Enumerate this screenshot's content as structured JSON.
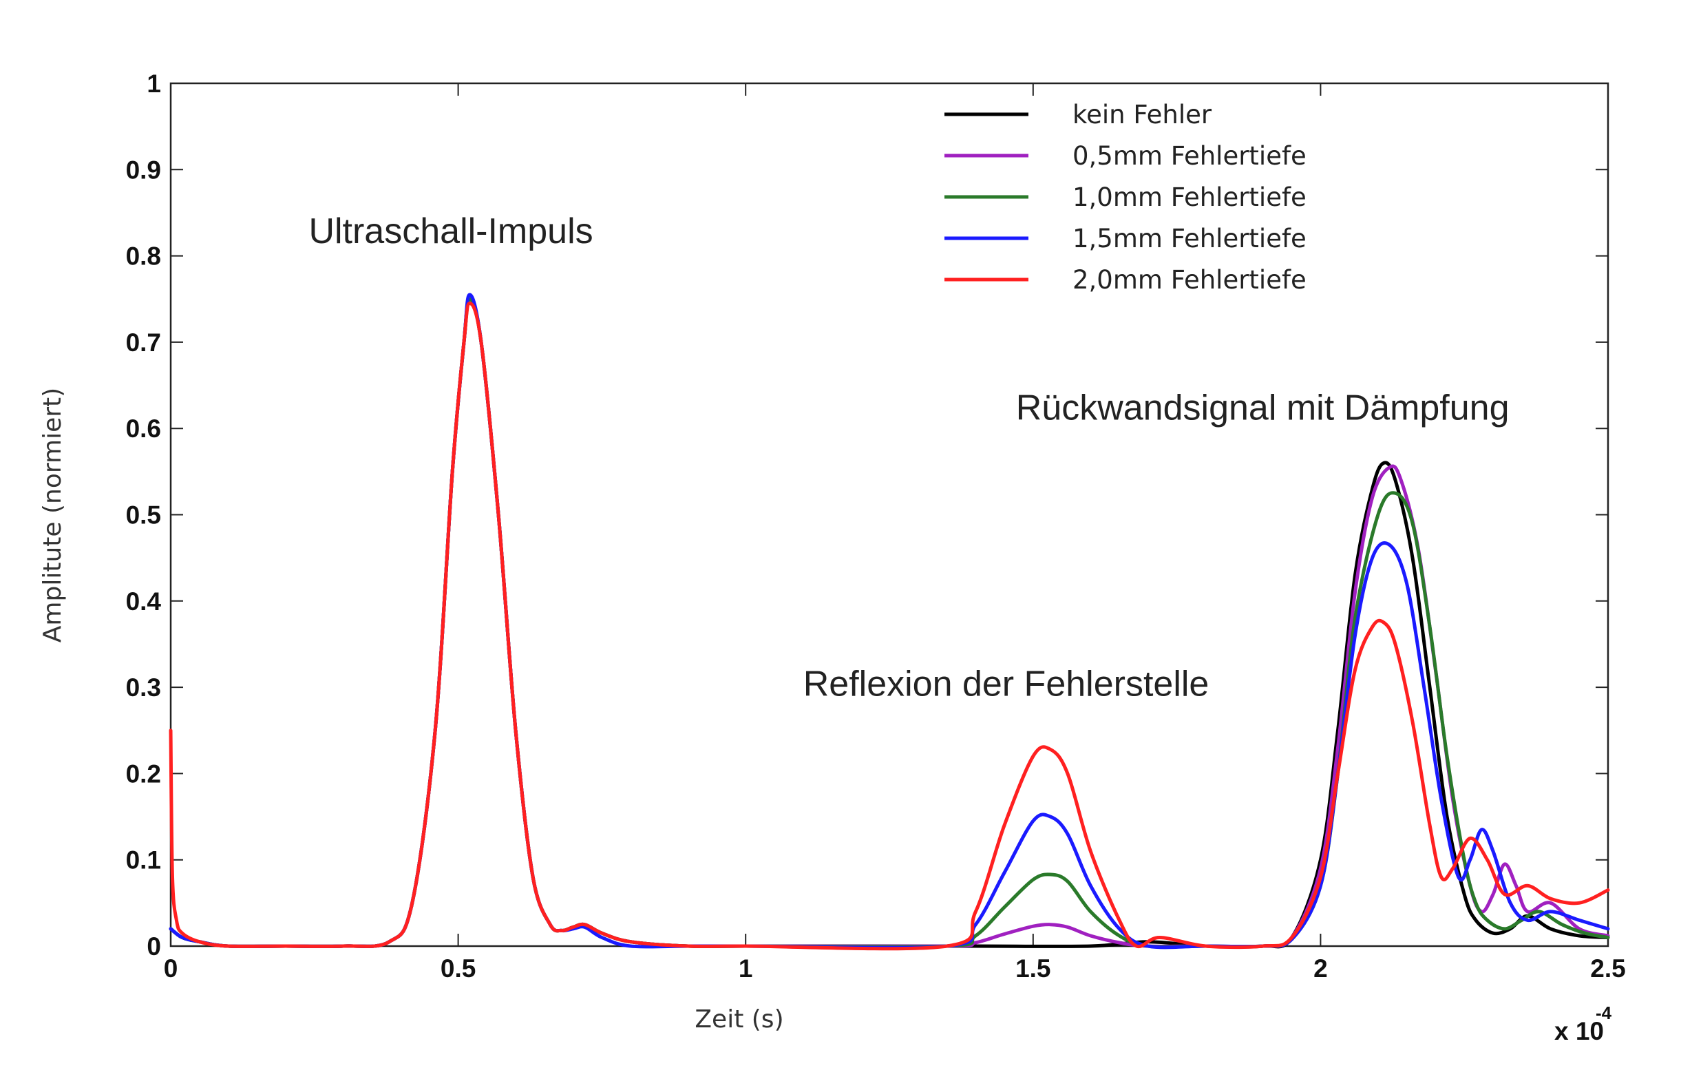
{
  "chart_data": {
    "type": "line",
    "xlabel": "Zeit (s)",
    "ylabel": "Amplitute (normiert)",
    "x_exponent_base": "x 10",
    "x_exponent_power": "-4",
    "xlim": [
      0,
      2.5
    ],
    "ylim": [
      0,
      1
    ],
    "x_ticks": [
      "0",
      "0.5",
      "1",
      "1.5",
      "2",
      "2.5"
    ],
    "y_ticks": [
      "0",
      "0.1",
      "0.2",
      "0.3",
      "0.4",
      "0.5",
      "0.6",
      "0.7",
      "0.8",
      "0.9",
      "1"
    ],
    "grid": false,
    "legend_position": "top-right",
    "annotations": [
      {
        "text": "Ultraschall-Impuls",
        "x": 0.24,
        "y": 0.815
      },
      {
        "text": "Reflexion der Fehlerstelle",
        "x": 1.1,
        "y": 0.29
      },
      {
        "text": "Rückwandsignal mit Dämpfung",
        "x": 1.47,
        "y": 0.61
      }
    ],
    "series": [
      {
        "name": "kein Fehler",
        "color": "#000000",
        "x": [
          0,
          0.02,
          0.05,
          0.1,
          0.2,
          0.3,
          0.38,
          0.42,
          0.46,
          0.49,
          0.51,
          0.52,
          0.54,
          0.57,
          0.6,
          0.63,
          0.66,
          0.68,
          0.7,
          0.72,
          0.75,
          0.8,
          0.9,
          1.0,
          1.2,
          1.4,
          1.6,
          1.7,
          1.8,
          1.9,
          1.95,
          2.0,
          2.03,
          2.06,
          2.09,
          2.11,
          2.13,
          2.16,
          2.19,
          2.22,
          2.25,
          2.27,
          2.3,
          2.33,
          2.36,
          2.4,
          2.45,
          2.5
        ],
        "y": [
          0.02,
          0.01,
          0.005,
          0.0,
          0.0,
          0.0,
          0.005,
          0.05,
          0.25,
          0.55,
          0.7,
          0.75,
          0.7,
          0.5,
          0.25,
          0.08,
          0.025,
          0.018,
          0.022,
          0.025,
          0.015,
          0.005,
          0.0,
          0.0,
          0.0,
          0.0,
          0.0,
          0.005,
          0.0,
          0.0,
          0.01,
          0.1,
          0.25,
          0.43,
          0.53,
          0.56,
          0.54,
          0.45,
          0.3,
          0.15,
          0.06,
          0.03,
          0.015,
          0.02,
          0.035,
          0.02,
          0.012,
          0.01
        ]
      },
      {
        "name": "0,5mm Fehlertiefe",
        "color": "#a020c0",
        "x": [
          0,
          0.02,
          0.05,
          0.1,
          0.2,
          0.3,
          0.38,
          0.42,
          0.46,
          0.49,
          0.51,
          0.52,
          0.54,
          0.57,
          0.6,
          0.63,
          0.66,
          0.68,
          0.7,
          0.72,
          0.75,
          0.8,
          0.9,
          1.0,
          1.35,
          1.4,
          1.45,
          1.5,
          1.53,
          1.56,
          1.6,
          1.65,
          1.7,
          1.8,
          1.9,
          1.95,
          2.0,
          2.03,
          2.06,
          2.09,
          2.12,
          2.14,
          2.17,
          2.2,
          2.23,
          2.26,
          2.28,
          2.3,
          2.32,
          2.34,
          2.36,
          2.4,
          2.45,
          2.5
        ],
        "y": [
          0.02,
          0.01,
          0.005,
          0.0,
          0.0,
          0.0,
          0.005,
          0.05,
          0.25,
          0.55,
          0.7,
          0.75,
          0.7,
          0.5,
          0.25,
          0.08,
          0.025,
          0.018,
          0.022,
          0.025,
          0.015,
          0.005,
          0.0,
          0.0,
          0.0,
          0.004,
          0.014,
          0.023,
          0.025,
          0.022,
          0.012,
          0.004,
          0.0,
          0.0,
          0.0,
          0.01,
          0.09,
          0.23,
          0.41,
          0.52,
          0.555,
          0.54,
          0.46,
          0.32,
          0.17,
          0.07,
          0.04,
          0.06,
          0.095,
          0.07,
          0.04,
          0.05,
          0.02,
          0.012
        ]
      },
      {
        "name": "1,0mm Fehlertiefe",
        "color": "#2a7a2a",
        "x": [
          0,
          0.02,
          0.05,
          0.1,
          0.2,
          0.3,
          0.38,
          0.42,
          0.46,
          0.49,
          0.51,
          0.52,
          0.54,
          0.57,
          0.6,
          0.63,
          0.66,
          0.68,
          0.7,
          0.72,
          0.75,
          0.8,
          0.9,
          1.0,
          1.35,
          1.4,
          1.45,
          1.5,
          1.53,
          1.56,
          1.6,
          1.65,
          1.7,
          1.8,
          1.9,
          1.95,
          2.0,
          2.03,
          2.06,
          2.1,
          2.13,
          2.16,
          2.19,
          2.22,
          2.25,
          2.27,
          2.29,
          2.32,
          2.35,
          2.38,
          2.42,
          2.46,
          2.5
        ],
        "y": [
          0.02,
          0.01,
          0.005,
          0.0,
          0.0,
          0.0,
          0.005,
          0.05,
          0.25,
          0.55,
          0.7,
          0.75,
          0.7,
          0.5,
          0.25,
          0.08,
          0.025,
          0.018,
          0.022,
          0.025,
          0.015,
          0.005,
          0.0,
          0.0,
          0.0,
          0.012,
          0.045,
          0.077,
          0.083,
          0.075,
          0.04,
          0.012,
          0.0,
          0.0,
          0.0,
          0.008,
          0.07,
          0.2,
          0.38,
          0.5,
          0.525,
          0.49,
          0.37,
          0.22,
          0.1,
          0.05,
          0.03,
          0.02,
          0.03,
          0.04,
          0.025,
          0.015,
          0.01
        ]
      },
      {
        "name": "1,5mm Fehlertiefe",
        "color": "#1a1aff",
        "x": [
          0,
          0.02,
          0.05,
          0.1,
          0.2,
          0.3,
          0.38,
          0.42,
          0.46,
          0.49,
          0.51,
          0.52,
          0.54,
          0.57,
          0.6,
          0.63,
          0.66,
          0.68,
          0.7,
          0.72,
          0.75,
          0.8,
          0.9,
          1.0,
          1.35,
          1.4,
          1.45,
          1.5,
          1.53,
          1.56,
          1.6,
          1.65,
          1.7,
          1.8,
          1.9,
          1.95,
          2.0,
          2.03,
          2.06,
          2.09,
          2.12,
          2.15,
          2.18,
          2.21,
          2.24,
          2.26,
          2.28,
          2.3,
          2.33,
          2.36,
          2.4,
          2.45,
          2.5
        ],
        "y": [
          0.02,
          0.01,
          0.005,
          0.0,
          0.0,
          0.0,
          0.005,
          0.05,
          0.25,
          0.55,
          0.7,
          0.755,
          0.7,
          0.5,
          0.25,
          0.08,
          0.025,
          0.018,
          0.02,
          0.022,
          0.01,
          0.0,
          0.0,
          0.0,
          0.0,
          0.025,
          0.085,
          0.145,
          0.15,
          0.13,
          0.07,
          0.02,
          0.0,
          0.0,
          0.0,
          0.008,
          0.07,
          0.2,
          0.36,
          0.45,
          0.465,
          0.42,
          0.3,
          0.17,
          0.08,
          0.1,
          0.135,
          0.11,
          0.05,
          0.03,
          0.04,
          0.03,
          0.02
        ]
      },
      {
        "name": "2,0mm Fehlertiefe",
        "color": "#ff2020",
        "x": [
          0,
          0.003,
          0.01,
          0.02,
          0.05,
          0.1,
          0.2,
          0.3,
          0.38,
          0.42,
          0.46,
          0.49,
          0.51,
          0.52,
          0.54,
          0.57,
          0.6,
          0.63,
          0.66,
          0.68,
          0.7,
          0.72,
          0.75,
          0.8,
          0.9,
          1.0,
          1.35,
          1.4,
          1.45,
          1.5,
          1.53,
          1.56,
          1.6,
          1.65,
          1.68,
          1.72,
          1.8,
          1.9,
          1.95,
          2.0,
          2.03,
          2.06,
          2.09,
          2.11,
          2.13,
          2.16,
          2.19,
          2.21,
          2.23,
          2.26,
          2.29,
          2.32,
          2.36,
          2.4,
          2.45,
          2.5
        ],
        "y": [
          0.25,
          0.08,
          0.03,
          0.015,
          0.005,
          0.0,
          0.0,
          0.0,
          0.005,
          0.05,
          0.25,
          0.55,
          0.7,
          0.745,
          0.7,
          0.5,
          0.25,
          0.08,
          0.025,
          0.018,
          0.022,
          0.025,
          0.015,
          0.005,
          0.0,
          0.0,
          0.0,
          0.04,
          0.14,
          0.22,
          0.228,
          0.2,
          0.11,
          0.03,
          0.0,
          0.01,
          0.0,
          0.0,
          0.01,
          0.08,
          0.2,
          0.32,
          0.37,
          0.375,
          0.35,
          0.26,
          0.14,
          0.08,
          0.09,
          0.125,
          0.1,
          0.06,
          0.07,
          0.055,
          0.05,
          0.065
        ]
      }
    ]
  }
}
